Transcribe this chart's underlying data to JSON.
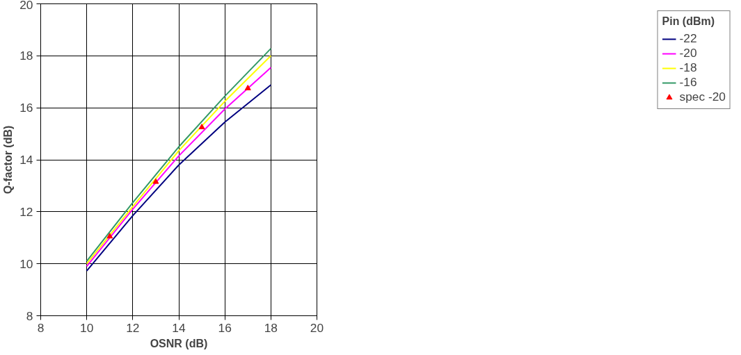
{
  "chart_data": {
    "type": "line",
    "xlabel": "OSNR (dB)",
    "ylabel": "Q-factor (dB)",
    "legend_title": "Pin (dBm)",
    "legend": "right",
    "grid": true,
    "xlim": [
      8,
      20
    ],
    "xticks": [
      8,
      10,
      12,
      14,
      16,
      18,
      20
    ],
    "ylim": [
      8,
      20
    ],
    "yticks": [
      8,
      10,
      12,
      14,
      16,
      18,
      20
    ],
    "x": [
      10,
      12,
      14,
      16,
      18
    ],
    "series": [
      {
        "name": "-22",
        "color": "#000080",
        "values": [
          9.73,
          11.85,
          13.8,
          15.45,
          16.88
        ]
      },
      {
        "name": "-20",
        "color": "#ff00ff",
        "values": [
          9.9,
          12.1,
          14.15,
          15.95,
          17.55
        ]
      },
      {
        "name": "-18",
        "color": "#ffff00",
        "values": [
          10.0,
          12.2,
          14.35,
          16.25,
          18.0
        ]
      },
      {
        "name": "-16",
        "color": "#339966",
        "values": [
          10.1,
          12.35,
          14.5,
          16.45,
          18.28
        ]
      },
      {
        "name": "spec -20",
        "color": "#ff0000",
        "type": "scatter",
        "marker": "triangle",
        "x": [
          11,
          13,
          15,
          17
        ],
        "values": [
          11.05,
          13.15,
          15.25,
          16.75
        ]
      }
    ]
  }
}
